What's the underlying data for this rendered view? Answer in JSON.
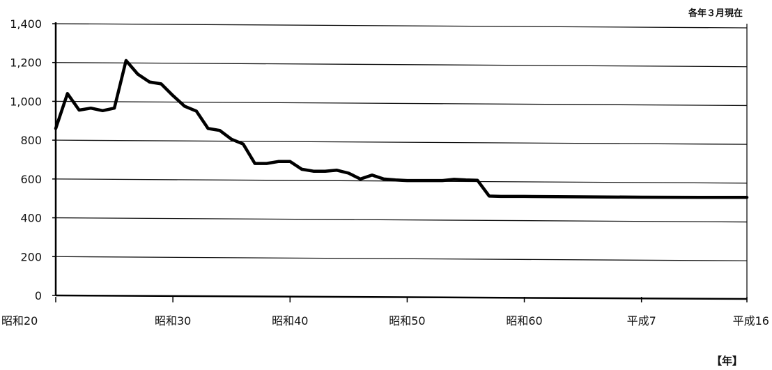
{
  "chart_data": {
    "type": "line",
    "title": "",
    "annotation": "各年３月現在",
    "xlabel": "【年】",
    "ylabel": "",
    "ylim": [
      0,
      1400
    ],
    "y_ticks": [
      0,
      200,
      400,
      600,
      800,
      1000,
      1200,
      1400
    ],
    "y_tick_labels": [
      "0",
      "200",
      "400",
      "600",
      "800",
      "1,000",
      "1,200",
      "1,400"
    ],
    "x_ticks": [
      1945,
      1955,
      1965,
      1975,
      1985,
      1995,
      2004
    ],
    "x_tick_labels": [
      "昭和20",
      "昭和30",
      "昭和40",
      "昭和50",
      "昭和60",
      "平成7",
      "平成16"
    ],
    "xlim": [
      1945,
      2004
    ],
    "grid": true,
    "series": [
      {
        "color": "#000000",
        "points": [
          [
            1945,
            860
          ],
          [
            1946,
            1040
          ],
          [
            1947,
            955
          ],
          [
            1948,
            965
          ],
          [
            1949,
            952
          ],
          [
            1950,
            965
          ],
          [
            1951,
            1210
          ],
          [
            1952,
            1140
          ],
          [
            1953,
            1100
          ],
          [
            1954,
            1090
          ],
          [
            1955,
            1030
          ],
          [
            1956,
            975
          ],
          [
            1957,
            950
          ],
          [
            1958,
            860
          ],
          [
            1959,
            850
          ],
          [
            1960,
            805
          ],
          [
            1961,
            780
          ],
          [
            1962,
            680
          ],
          [
            1963,
            680
          ],
          [
            1964,
            690
          ],
          [
            1965,
            690
          ],
          [
            1966,
            650
          ],
          [
            1967,
            640
          ],
          [
            1968,
            640
          ],
          [
            1969,
            645
          ],
          [
            1970,
            630
          ],
          [
            1971,
            600
          ],
          [
            1972,
            620
          ],
          [
            1973,
            600
          ],
          [
            1974,
            595
          ],
          [
            1975,
            592
          ],
          [
            1976,
            592
          ],
          [
            1977,
            592
          ],
          [
            1978,
            592
          ],
          [
            1979,
            598
          ],
          [
            1980,
            595
          ],
          [
            1981,
            593
          ],
          [
            1982,
            512
          ],
          [
            1983,
            510
          ],
          [
            1984,
            510
          ],
          [
            1985,
            510
          ],
          [
            1990,
            508
          ],
          [
            1995,
            506
          ],
          [
            2000,
            505
          ],
          [
            2004,
            505
          ]
        ]
      }
    ]
  }
}
